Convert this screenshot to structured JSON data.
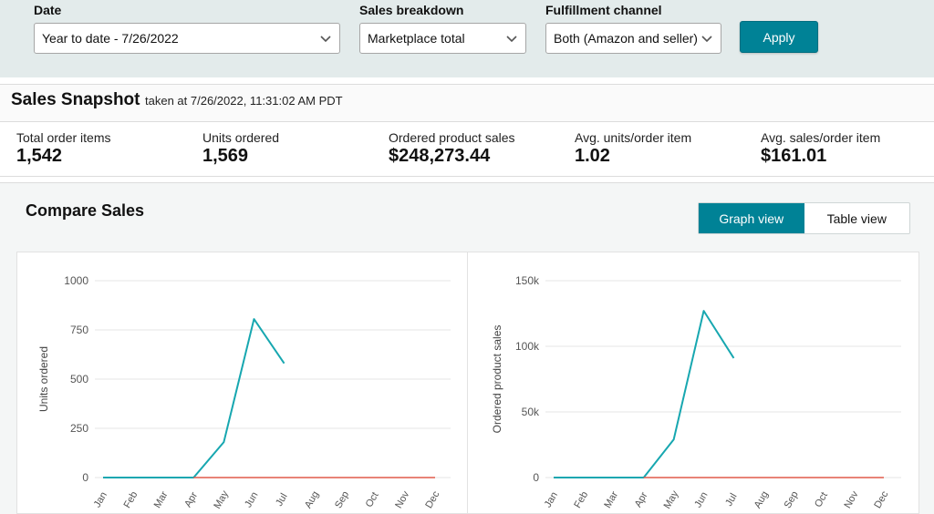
{
  "filters": {
    "date": {
      "label": "Date",
      "value": "Year to date - 7/26/2022"
    },
    "breakdown": {
      "label": "Sales breakdown",
      "value": "Marketplace total"
    },
    "channel": {
      "label": "Fulfillment channel",
      "value": "Both (Amazon and seller)"
    },
    "apply_label": "Apply"
  },
  "snapshot": {
    "title": "Sales Snapshot",
    "taken_at": "taken at 7/26/2022, 11:31:02 AM PDT",
    "metrics": [
      {
        "label": "Total order items",
        "value": "1,542"
      },
      {
        "label": "Units ordered",
        "value": "1,569"
      },
      {
        "label": "Ordered product sales",
        "value": "$248,273.44"
      },
      {
        "label": "Avg. units/order item",
        "value": "1.02"
      },
      {
        "label": "Avg. sales/order item",
        "value": "$161.01"
      }
    ]
  },
  "compare": {
    "title": "Compare Sales",
    "view_toggle": {
      "graph": "Graph view",
      "table": "Table view",
      "active": "graph"
    }
  },
  "colors": {
    "accent": "#008296",
    "line_current": "#17a7b0",
    "line_baseline": "#e05a4a"
  },
  "chart_data": [
    {
      "type": "line",
      "ylabel": "Units ordered",
      "ylim": [
        0,
        1000
      ],
      "yticks": [
        0,
        250,
        500,
        750,
        1000
      ],
      "ytick_labels": [
        "0",
        "250",
        "500",
        "750",
        "1000"
      ],
      "categories": [
        "Jan",
        "Feb",
        "Mar",
        "Apr",
        "May",
        "Jun",
        "Jul",
        "Aug",
        "Sep",
        "Oct",
        "Nov",
        "Dec"
      ],
      "series": [
        {
          "color": "#17a7b0",
          "values": [
            0,
            0,
            0,
            0,
            180,
            805,
            580,
            null,
            null,
            null,
            null,
            null
          ]
        },
        {
          "color": "#e05a4a",
          "values": [
            null,
            null,
            null,
            0,
            0,
            0,
            0,
            0,
            0,
            0,
            0,
            0
          ]
        }
      ],
      "grid": true
    },
    {
      "type": "line",
      "ylabel": "Ordered product sales",
      "ylim": [
        0,
        150000
      ],
      "yticks": [
        0,
        50000,
        100000,
        150000
      ],
      "ytick_labels": [
        "0",
        "50k",
        "100k",
        "150k"
      ],
      "categories": [
        "Jan",
        "Feb",
        "Mar",
        "Apr",
        "May",
        "Jun",
        "Jul",
        "Aug",
        "Sep",
        "Oct",
        "Nov",
        "Dec"
      ],
      "series": [
        {
          "color": "#17a7b0",
          "values": [
            0,
            0,
            0,
            0,
            29000,
            127000,
            91000,
            null,
            null,
            null,
            null,
            null
          ]
        },
        {
          "color": "#e05a4a",
          "values": [
            null,
            null,
            null,
            0,
            0,
            0,
            0,
            0,
            0,
            0,
            0,
            0
          ]
        }
      ],
      "grid": true
    }
  ]
}
